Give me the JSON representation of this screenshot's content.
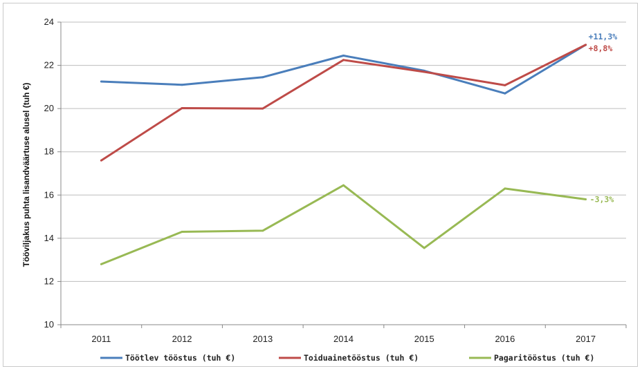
{
  "chart_data": {
    "type": "line",
    "title": "",
    "xlabel": "",
    "ylabel": "Tööviljakus puhta lisandväärtuse alusel (tuh €)",
    "ylim": [
      10,
      24
    ],
    "yticks": [
      "10",
      "12",
      "14",
      "16",
      "18",
      "20",
      "22",
      "24"
    ],
    "categories": [
      "2011",
      "2012",
      "2013",
      "2014",
      "2015",
      "2016",
      "2017"
    ],
    "grid": true,
    "legend_position": "bottom",
    "series": [
      {
        "name": "Töötlev tööstus (tuh €)",
        "color": "#4a7ebb",
        "values": [
          21.25,
          21.1,
          21.45,
          22.45,
          21.75,
          20.7,
          22.95
        ],
        "end_label": "+11,3%"
      },
      {
        "name": "Toiduainetööstus (tuh €)",
        "color": "#be4b48",
        "values": [
          17.6,
          20.02,
          20.0,
          22.25,
          21.7,
          21.08,
          22.95
        ],
        "end_label": "+8,8%"
      },
      {
        "name": "Pagaritööstus (tuh €)",
        "color": "#98b954",
        "values": [
          12.8,
          14.3,
          14.35,
          16.45,
          13.55,
          16.3,
          15.8
        ],
        "end_label": "-3,3%"
      }
    ]
  }
}
